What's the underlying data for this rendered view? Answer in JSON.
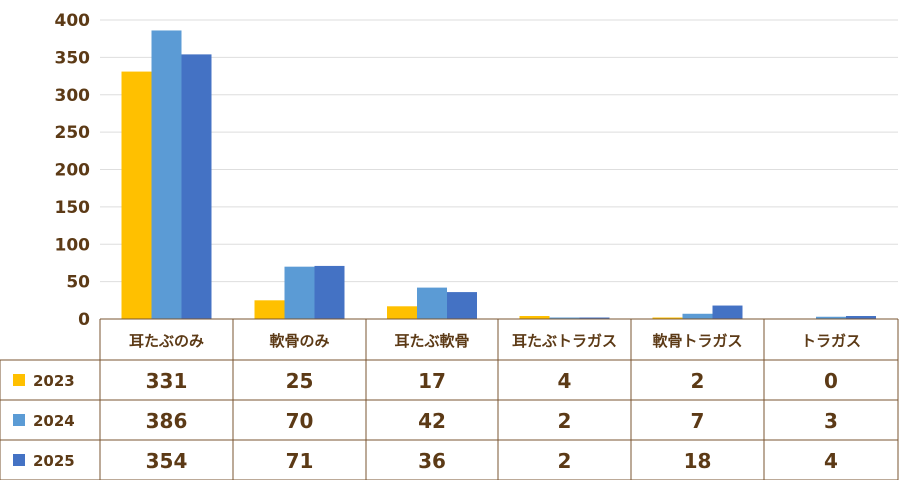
{
  "chart_data": {
    "type": "bar",
    "categories": [
      "耳たぶのみ",
      "軟骨のみ",
      "耳たぶ軟骨",
      "耳たぶトラガス",
      "軟骨トラガス",
      "トラガス"
    ],
    "series": [
      {
        "name": "2023",
        "color": "#ffc000",
        "values": [
          331,
          25,
          17,
          4,
          2,
          0
        ]
      },
      {
        "name": "2024",
        "color": "#5b9bd5",
        "values": [
          386,
          70,
          42,
          2,
          7,
          3
        ]
      },
      {
        "name": "2025",
        "color": "#4472c4",
        "values": [
          354,
          71,
          36,
          2,
          18,
          4
        ]
      }
    ],
    "ylim": [
      0,
      400
    ],
    "yticks": [
      0,
      50,
      100,
      150,
      200,
      250,
      300,
      350,
      400
    ],
    "grid": true,
    "legend": "bottom-left data table",
    "title": "",
    "xlabel": "",
    "ylabel": ""
  }
}
